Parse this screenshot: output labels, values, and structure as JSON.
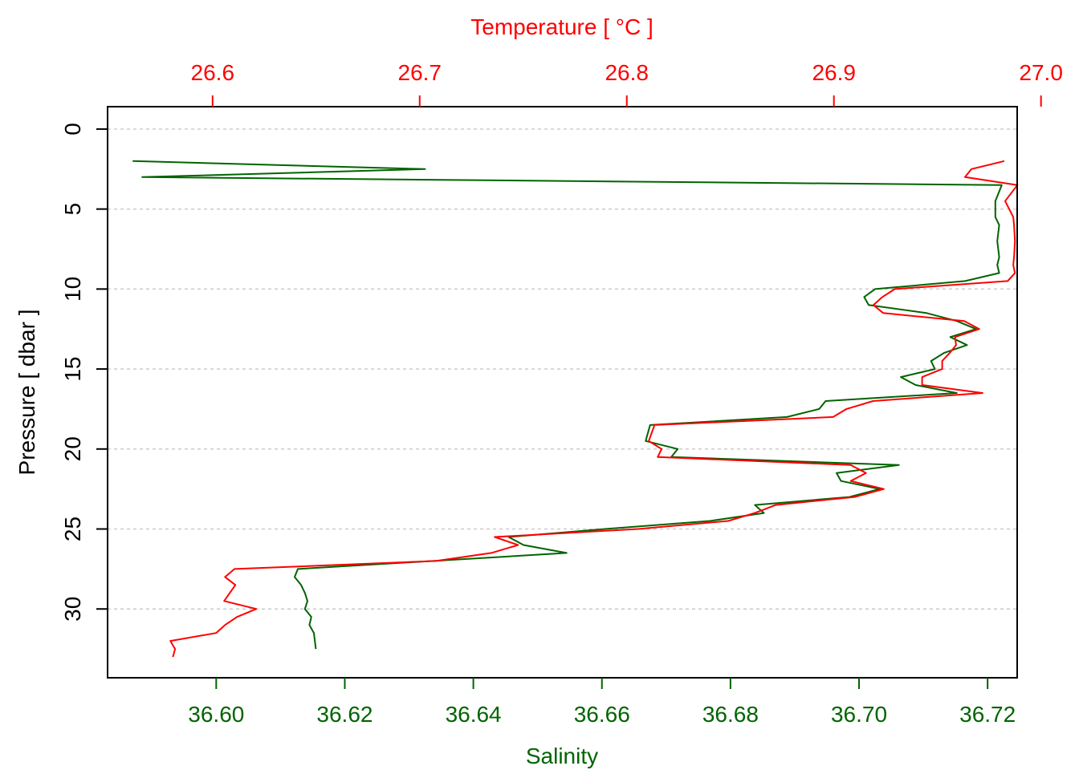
{
  "chart_data": {
    "type": "line",
    "xlabel_bottom": "Salinity",
    "xlabel_top": "Temperature [ °C ]",
    "ylabel": "Pressure [ dbar ]",
    "colors": {
      "salinity": "#006400",
      "temperature": "#ff0000"
    },
    "grid": true,
    "y_axis": {
      "ticks": [
        0,
        5,
        10,
        15,
        20,
        25,
        30
      ],
      "tick_labels": [
        "0",
        "5",
        "10",
        "15",
        "20",
        "25",
        "30"
      ],
      "lim": [
        34.3,
        -1.4
      ],
      "inverted": true
    },
    "x_bottom": {
      "ticks": [
        36.6,
        36.62,
        36.64,
        36.66,
        36.68,
        36.7,
        36.72
      ],
      "tick_labels": [
        "36.60",
        "36.62",
        "36.64",
        "36.66",
        "36.68",
        "36.70",
        "36.72"
      ],
      "lim": [
        36.5831,
        36.7246
      ]
    },
    "x_top": {
      "ticks": [
        26.6,
        26.7,
        26.8,
        26.9,
        27.0
      ],
      "tick_labels": [
        "26.6",
        "26.7",
        "26.8",
        "26.9",
        "27.0"
      ],
      "lim": [
        26.5493,
        26.9885
      ]
    },
    "series": [
      {
        "name": "Salinity",
        "axis": "bottom",
        "points": [
          [
            36.587,
            2.0
          ],
          [
            36.6325,
            2.5
          ],
          [
            36.5885,
            3.0
          ],
          [
            36.7222,
            3.5
          ],
          [
            36.7212,
            4.5
          ],
          [
            36.7212,
            5.5
          ],
          [
            36.7218,
            6.0
          ],
          [
            36.7215,
            7.0
          ],
          [
            36.7218,
            8.0
          ],
          [
            36.7215,
            8.5
          ],
          [
            36.7218,
            9.0
          ],
          [
            36.7165,
            9.5
          ],
          [
            36.7025,
            10.0
          ],
          [
            36.7008,
            10.5
          ],
          [
            36.7015,
            11.0
          ],
          [
            36.7105,
            11.5
          ],
          [
            36.7152,
            12.0
          ],
          [
            36.7182,
            12.5
          ],
          [
            36.7142,
            13.0
          ],
          [
            36.7168,
            13.5
          ],
          [
            36.7132,
            14.0
          ],
          [
            36.7112,
            14.5
          ],
          [
            36.7118,
            15.0
          ],
          [
            36.7065,
            15.5
          ],
          [
            36.7088,
            16.0
          ],
          [
            36.7152,
            16.5
          ],
          [
            36.6948,
            17.0
          ],
          [
            36.6938,
            17.5
          ],
          [
            36.6888,
            18.0
          ],
          [
            36.6675,
            18.5
          ],
          [
            36.6668,
            19.5
          ],
          [
            36.6718,
            20.0
          ],
          [
            36.6708,
            20.5
          ],
          [
            36.7062,
            21.0
          ],
          [
            36.6965,
            21.5
          ],
          [
            36.6972,
            22.0
          ],
          [
            36.7032,
            22.5
          ],
          [
            36.6985,
            23.0
          ],
          [
            36.6838,
            23.5
          ],
          [
            36.6852,
            24.0
          ],
          [
            36.6768,
            24.5
          ],
          [
            36.6605,
            25.0
          ],
          [
            36.6455,
            25.5
          ],
          [
            36.6478,
            26.0
          ],
          [
            36.6545,
            26.5
          ],
          [
            36.6127,
            27.5
          ],
          [
            36.6122,
            28.0
          ],
          [
            36.6132,
            28.5
          ],
          [
            36.6138,
            29.0
          ],
          [
            36.6142,
            29.5
          ],
          [
            36.6138,
            30.0
          ],
          [
            36.6148,
            30.5
          ],
          [
            36.6145,
            31.0
          ],
          [
            36.6152,
            31.5
          ],
          [
            36.6155,
            32.5
          ]
        ]
      },
      {
        "name": "Temperature",
        "axis": "top",
        "points": [
          [
            26.9823,
            2.0
          ],
          [
            26.9664,
            2.5
          ],
          [
            26.9633,
            3.0
          ],
          [
            26.9886,
            3.5
          ],
          [
            26.9827,
            4.5
          ],
          [
            26.9866,
            5.5
          ],
          [
            26.987,
            6.0
          ],
          [
            26.9874,
            7.0
          ],
          [
            26.987,
            8.0
          ],
          [
            26.9866,
            8.5
          ],
          [
            26.9874,
            9.0
          ],
          [
            26.9839,
            9.5
          ],
          [
            26.9294,
            10.0
          ],
          [
            26.9234,
            10.5
          ],
          [
            26.9191,
            11.0
          ],
          [
            26.9238,
            11.5
          ],
          [
            26.9629,
            12.0
          ],
          [
            26.9702,
            12.5
          ],
          [
            26.9585,
            13.0
          ],
          [
            26.959,
            13.5
          ],
          [
            26.9559,
            14.0
          ],
          [
            26.9523,
            14.5
          ],
          [
            26.9523,
            15.0
          ],
          [
            26.9426,
            15.5
          ],
          [
            26.9426,
            16.0
          ],
          [
            26.9718,
            16.5
          ],
          [
            26.9189,
            17.0
          ],
          [
            26.9061,
            17.5
          ],
          [
            26.8996,
            18.0
          ],
          [
            26.8134,
            18.5
          ],
          [
            26.8106,
            19.5
          ],
          [
            26.8168,
            20.0
          ],
          [
            26.8149,
            20.5
          ],
          [
            26.9081,
            21.0
          ],
          [
            26.9155,
            21.5
          ],
          [
            26.9081,
            22.0
          ],
          [
            26.9241,
            22.5
          ],
          [
            26.91,
            23.0
          ],
          [
            26.8719,
            23.5
          ],
          [
            26.8618,
            24.0
          ],
          [
            26.849,
            24.5
          ],
          [
            26.8056,
            25.0
          ],
          [
            26.7362,
            25.5
          ],
          [
            26.7475,
            26.0
          ],
          [
            26.7346,
            26.5
          ],
          [
            26.7079,
            27.0
          ],
          [
            26.6106,
            27.5
          ],
          [
            26.606,
            28.0
          ],
          [
            26.611,
            28.5
          ],
          [
            26.6056,
            29.5
          ],
          [
            26.6211,
            30.0
          ],
          [
            26.6118,
            30.5
          ],
          [
            26.606,
            31.0
          ],
          [
            26.6017,
            31.5
          ],
          [
            26.5796,
            32.0
          ],
          [
            26.5819,
            32.5
          ],
          [
            26.5808,
            33.0
          ]
        ]
      }
    ]
  }
}
